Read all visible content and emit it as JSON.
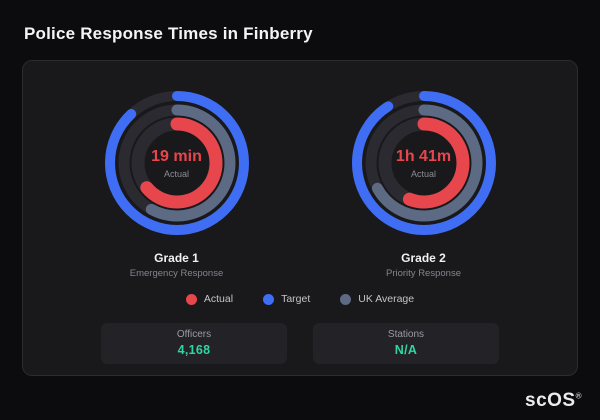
{
  "page": {
    "title": "Police Response Times in Finberry",
    "brand": "scOS",
    "brand_mark": "®"
  },
  "colors": {
    "actual": "#e8464d",
    "target": "#3f6df4",
    "uk_average": "#5d6a84",
    "track": "#2a2a30",
    "value_accent": "#30d5a0"
  },
  "chart_data": [
    {
      "type": "radial",
      "title": "Grade 1",
      "subtitle": "Emergency Response",
      "center_value": "19 min",
      "center_label": "Actual",
      "rings": [
        {
          "name": "Target",
          "color_key": "target",
          "percent": 88
        },
        {
          "name": "UK Average",
          "color_key": "uk_average",
          "percent": 58
        },
        {
          "name": "Actual",
          "color_key": "actual",
          "percent": 64
        }
      ]
    },
    {
      "type": "radial",
      "title": "Grade 2",
      "subtitle": "Priority Response",
      "center_value": "1h 41m",
      "center_label": "Actual",
      "rings": [
        {
          "name": "Target",
          "color_key": "target",
          "percent": 91
        },
        {
          "name": "UK Average",
          "color_key": "uk_average",
          "percent": 67
        },
        {
          "name": "Actual",
          "color_key": "actual",
          "percent": 56
        }
      ]
    }
  ],
  "legend": [
    {
      "label": "Actual",
      "color_key": "actual"
    },
    {
      "label": "Target",
      "color_key": "target"
    },
    {
      "label": "UK Average",
      "color_key": "uk_average"
    }
  ],
  "stats": [
    {
      "label": "Officers",
      "value": "4,168"
    },
    {
      "label": "Stations",
      "value": "N/A"
    }
  ]
}
